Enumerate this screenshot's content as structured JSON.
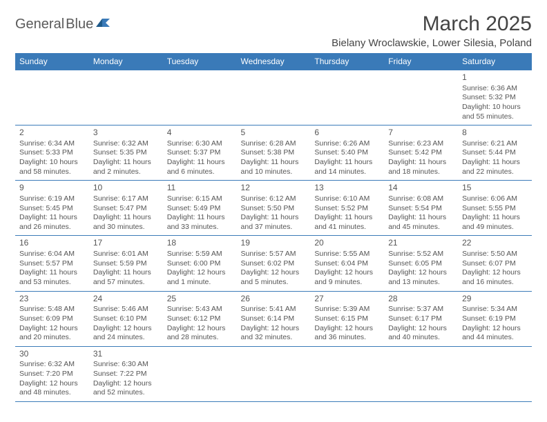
{
  "colors": {
    "header_bg": "#3a7ab8",
    "header_text": "#ffffff",
    "border": "#3a7ab8",
    "text": "#555555",
    "logo_gray": "#5a5a5a",
    "logo_blue": "#3a7ab8"
  },
  "logo": {
    "part1": "General",
    "part2": "Blue"
  },
  "title": "March 2025",
  "subtitle": "Bielany Wroclawskie, Lower Silesia, Poland",
  "dayHeaders": [
    "Sunday",
    "Monday",
    "Tuesday",
    "Wednesday",
    "Thursday",
    "Friday",
    "Saturday"
  ],
  "weeks": [
    [
      null,
      null,
      null,
      null,
      null,
      null,
      {
        "n": "1",
        "sunrise": "Sunrise: 6:36 AM",
        "sunset": "Sunset: 5:32 PM",
        "daylight": "Daylight: 10 hours and 55 minutes."
      }
    ],
    [
      {
        "n": "2",
        "sunrise": "Sunrise: 6:34 AM",
        "sunset": "Sunset: 5:33 PM",
        "daylight": "Daylight: 10 hours and 58 minutes."
      },
      {
        "n": "3",
        "sunrise": "Sunrise: 6:32 AM",
        "sunset": "Sunset: 5:35 PM",
        "daylight": "Daylight: 11 hours and 2 minutes."
      },
      {
        "n": "4",
        "sunrise": "Sunrise: 6:30 AM",
        "sunset": "Sunset: 5:37 PM",
        "daylight": "Daylight: 11 hours and 6 minutes."
      },
      {
        "n": "5",
        "sunrise": "Sunrise: 6:28 AM",
        "sunset": "Sunset: 5:38 PM",
        "daylight": "Daylight: 11 hours and 10 minutes."
      },
      {
        "n": "6",
        "sunrise": "Sunrise: 6:26 AM",
        "sunset": "Sunset: 5:40 PM",
        "daylight": "Daylight: 11 hours and 14 minutes."
      },
      {
        "n": "7",
        "sunrise": "Sunrise: 6:23 AM",
        "sunset": "Sunset: 5:42 PM",
        "daylight": "Daylight: 11 hours and 18 minutes."
      },
      {
        "n": "8",
        "sunrise": "Sunrise: 6:21 AM",
        "sunset": "Sunset: 5:44 PM",
        "daylight": "Daylight: 11 hours and 22 minutes."
      }
    ],
    [
      {
        "n": "9",
        "sunrise": "Sunrise: 6:19 AM",
        "sunset": "Sunset: 5:45 PM",
        "daylight": "Daylight: 11 hours and 26 minutes."
      },
      {
        "n": "10",
        "sunrise": "Sunrise: 6:17 AM",
        "sunset": "Sunset: 5:47 PM",
        "daylight": "Daylight: 11 hours and 30 minutes."
      },
      {
        "n": "11",
        "sunrise": "Sunrise: 6:15 AM",
        "sunset": "Sunset: 5:49 PM",
        "daylight": "Daylight: 11 hours and 33 minutes."
      },
      {
        "n": "12",
        "sunrise": "Sunrise: 6:12 AM",
        "sunset": "Sunset: 5:50 PM",
        "daylight": "Daylight: 11 hours and 37 minutes."
      },
      {
        "n": "13",
        "sunrise": "Sunrise: 6:10 AM",
        "sunset": "Sunset: 5:52 PM",
        "daylight": "Daylight: 11 hours and 41 minutes."
      },
      {
        "n": "14",
        "sunrise": "Sunrise: 6:08 AM",
        "sunset": "Sunset: 5:54 PM",
        "daylight": "Daylight: 11 hours and 45 minutes."
      },
      {
        "n": "15",
        "sunrise": "Sunrise: 6:06 AM",
        "sunset": "Sunset: 5:55 PM",
        "daylight": "Daylight: 11 hours and 49 minutes."
      }
    ],
    [
      {
        "n": "16",
        "sunrise": "Sunrise: 6:04 AM",
        "sunset": "Sunset: 5:57 PM",
        "daylight": "Daylight: 11 hours and 53 minutes."
      },
      {
        "n": "17",
        "sunrise": "Sunrise: 6:01 AM",
        "sunset": "Sunset: 5:59 PM",
        "daylight": "Daylight: 11 hours and 57 minutes."
      },
      {
        "n": "18",
        "sunrise": "Sunrise: 5:59 AM",
        "sunset": "Sunset: 6:00 PM",
        "daylight": "Daylight: 12 hours and 1 minute."
      },
      {
        "n": "19",
        "sunrise": "Sunrise: 5:57 AM",
        "sunset": "Sunset: 6:02 PM",
        "daylight": "Daylight: 12 hours and 5 minutes."
      },
      {
        "n": "20",
        "sunrise": "Sunrise: 5:55 AM",
        "sunset": "Sunset: 6:04 PM",
        "daylight": "Daylight: 12 hours and 9 minutes."
      },
      {
        "n": "21",
        "sunrise": "Sunrise: 5:52 AM",
        "sunset": "Sunset: 6:05 PM",
        "daylight": "Daylight: 12 hours and 13 minutes."
      },
      {
        "n": "22",
        "sunrise": "Sunrise: 5:50 AM",
        "sunset": "Sunset: 6:07 PM",
        "daylight": "Daylight: 12 hours and 16 minutes."
      }
    ],
    [
      {
        "n": "23",
        "sunrise": "Sunrise: 5:48 AM",
        "sunset": "Sunset: 6:09 PM",
        "daylight": "Daylight: 12 hours and 20 minutes."
      },
      {
        "n": "24",
        "sunrise": "Sunrise: 5:46 AM",
        "sunset": "Sunset: 6:10 PM",
        "daylight": "Daylight: 12 hours and 24 minutes."
      },
      {
        "n": "25",
        "sunrise": "Sunrise: 5:43 AM",
        "sunset": "Sunset: 6:12 PM",
        "daylight": "Daylight: 12 hours and 28 minutes."
      },
      {
        "n": "26",
        "sunrise": "Sunrise: 5:41 AM",
        "sunset": "Sunset: 6:14 PM",
        "daylight": "Daylight: 12 hours and 32 minutes."
      },
      {
        "n": "27",
        "sunrise": "Sunrise: 5:39 AM",
        "sunset": "Sunset: 6:15 PM",
        "daylight": "Daylight: 12 hours and 36 minutes."
      },
      {
        "n": "28",
        "sunrise": "Sunrise: 5:37 AM",
        "sunset": "Sunset: 6:17 PM",
        "daylight": "Daylight: 12 hours and 40 minutes."
      },
      {
        "n": "29",
        "sunrise": "Sunrise: 5:34 AM",
        "sunset": "Sunset: 6:19 PM",
        "daylight": "Daylight: 12 hours and 44 minutes."
      }
    ],
    [
      {
        "n": "30",
        "sunrise": "Sunrise: 6:32 AM",
        "sunset": "Sunset: 7:20 PM",
        "daylight": "Daylight: 12 hours and 48 minutes."
      },
      {
        "n": "31",
        "sunrise": "Sunrise: 6:30 AM",
        "sunset": "Sunset: 7:22 PM",
        "daylight": "Daylight: 12 hours and 52 minutes."
      },
      null,
      null,
      null,
      null,
      null
    ]
  ]
}
